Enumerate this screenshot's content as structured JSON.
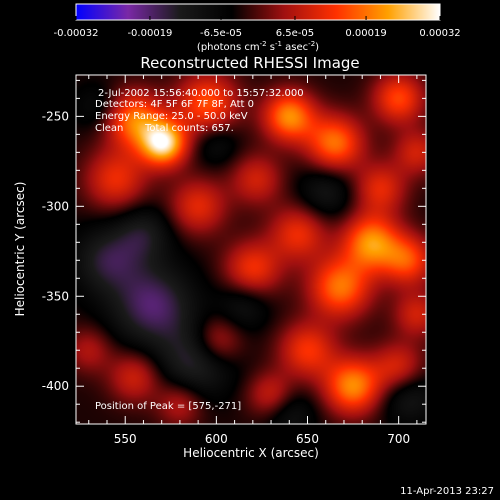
{
  "chart_data": {
    "type": "heatmap",
    "title": "Reconstructed RHESSI Image",
    "xlabel": "Heliocentric X (arcsec)",
    "ylabel": "Heliocentric Y (arcsec)",
    "xlim": [
      523,
      715
    ],
    "ylim": [
      -421,
      -227
    ],
    "x_ticks": [
      550,
      600,
      650,
      700
    ],
    "y_ticks": [
      -250,
      -300,
      -350,
      -400
    ],
    "colorbar": {
      "ticks": [
        "-0.00032",
        "-0.00019",
        "-6.5e-05",
        "6.5e-05",
        "0.00019",
        "0.00032"
      ],
      "tick_values": [
        -0.00032,
        -0.00019,
        -6.5e-05,
        6.5e-05,
        0.00019,
        0.00032
      ],
      "unit_label": "(photons cm-2 s-1 asec-2)",
      "range": [
        -0.00032,
        0.00032
      ],
      "colormap": [
        "#0000ff",
        "#7a28a6",
        "#1a1a1a",
        "#000000",
        "#a01010",
        "#ff3000",
        "#ffa000",
        "#ffffff"
      ]
    },
    "annotations": {
      "time_range": "2-Jul-2002 15:56:40.000 to 15:57:32.000",
      "detectors": "Detectors: 4F 5F 6F 7F 8F, Att 0",
      "energy_range": "Energy Range: 25.0 - 50.0 keV",
      "method": "Clean",
      "total_counts": "Total counts: 657.",
      "peak_position": "Position of Peak = [575,-271]"
    },
    "peak": {
      "x": 575,
      "y": -271
    },
    "blobs": [
      {
        "x": 571,
        "y": -265,
        "v": 0.00032,
        "s": 9
      },
      {
        "x": 555,
        "y": -252,
        "v": 0.00022,
        "s": 11
      },
      {
        "x": 595,
        "y": -243,
        "v": 0.00019,
        "s": 12
      },
      {
        "x": 640,
        "y": -250,
        "v": 0.00024,
        "s": 10
      },
      {
        "x": 665,
        "y": -265,
        "v": 0.00022,
        "s": 11
      },
      {
        "x": 700,
        "y": -240,
        "v": 0.00018,
        "s": 10
      },
      {
        "x": 545,
        "y": -285,
        "v": 0.00015,
        "s": 12
      },
      {
        "x": 590,
        "y": -300,
        "v": 0.00014,
        "s": 11
      },
      {
        "x": 622,
        "y": -285,
        "v": 0.00012,
        "s": 10
      },
      {
        "x": 690,
        "y": -290,
        "v": 0.00014,
        "s": 10
      },
      {
        "x": 710,
        "y": -270,
        "v": 0.00012,
        "s": 9
      },
      {
        "x": 620,
        "y": -335,
        "v": 0.00016,
        "s": 11
      },
      {
        "x": 645,
        "y": -315,
        "v": 0.00015,
        "s": 11
      },
      {
        "x": 668,
        "y": -345,
        "v": 0.00022,
        "s": 12
      },
      {
        "x": 685,
        "y": -320,
        "v": 0.00024,
        "s": 11
      },
      {
        "x": 705,
        "y": -330,
        "v": 0.00018,
        "s": 10
      },
      {
        "x": 600,
        "y": -375,
        "v": 0.00014,
        "s": 10
      },
      {
        "x": 650,
        "y": -380,
        "v": 0.00016,
        "s": 11
      },
      {
        "x": 675,
        "y": -400,
        "v": 0.00024,
        "s": 11
      },
      {
        "x": 700,
        "y": -390,
        "v": 0.00014,
        "s": 10
      },
      {
        "x": 710,
        "y": -360,
        "v": 0.00012,
        "s": 9
      },
      {
        "x": 630,
        "y": -405,
        "v": 0.00012,
        "s": 9
      },
      {
        "x": 555,
        "y": -395,
        "v": 0.00012,
        "s": 10
      },
      {
        "x": 580,
        "y": -410,
        "v": 0.0001,
        "s": 9
      },
      {
        "x": 530,
        "y": -380,
        "v": 9e-05,
        "s": 9
      },
      {
        "x": 565,
        "y": -355,
        "v": -0.00016,
        "s": 16
      },
      {
        "x": 540,
        "y": -330,
        "v": -0.00012,
        "s": 13
      },
      {
        "x": 590,
        "y": -385,
        "v": -0.00014,
        "s": 14
      },
      {
        "x": 560,
        "y": -315,
        "v": -0.0001,
        "s": 11
      },
      {
        "x": 615,
        "y": -355,
        "v": -8e-05,
        "s": 10
      },
      {
        "x": 660,
        "y": -292,
        "v": -9e-05,
        "s": 11
      },
      {
        "x": 705,
        "y": -405,
        "v": -0.0001,
        "s": 11
      },
      {
        "x": 640,
        "y": -415,
        "v": -8e-05,
        "s": 10
      },
      {
        "x": 600,
        "y": -265,
        "v": -7e-05,
        "s": 9
      },
      {
        "x": 535,
        "y": -245,
        "v": -6e-05,
        "s": 9
      }
    ]
  },
  "footer": {
    "timestamp": "11-Apr-2013 23:27"
  }
}
